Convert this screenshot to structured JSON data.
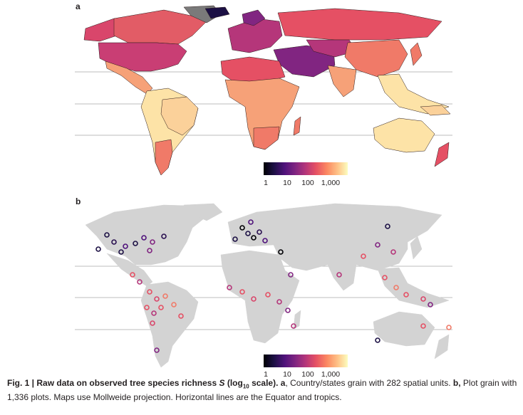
{
  "figure": {
    "panel_a": {
      "label": "a"
    },
    "panel_b": {
      "label": "b"
    },
    "colorbar": {
      "ticks": [
        "1",
        "10",
        "100",
        "1,000"
      ],
      "colors": [
        "#000004",
        "#1c1044",
        "#4f127b",
        "#812581",
        "#b5367a",
        "#e55064",
        "#fb8761",
        "#fec287",
        "#fcfdbf"
      ]
    },
    "map_colors": {
      "land_gray": "#d3d3d3",
      "no_data": "#7a7a7a",
      "high_richness": "#fde3a7",
      "mid_richness": "#f07a68",
      "low_richness": "#d9466b",
      "very_low": "#7d2a82",
      "lowest": "#2a1050",
      "grid_line": "#bdbdbd"
    },
    "caption": {
      "fig_label": "Fig. 1 |",
      "title_part1": "Raw data on observed tree species richness ",
      "title_var": "S",
      "title_part2": " (log",
      "title_sub": "10",
      "title_part3": " scale).",
      "a_label": "a",
      "a_text": ", Country/states grain with 282 spatial units. ",
      "b_label": "b,",
      "b_text": " Plot grain with 1,336 plots. Maps use Mollweide projection. Horizontal lines are the Equator and tropics."
    }
  }
}
